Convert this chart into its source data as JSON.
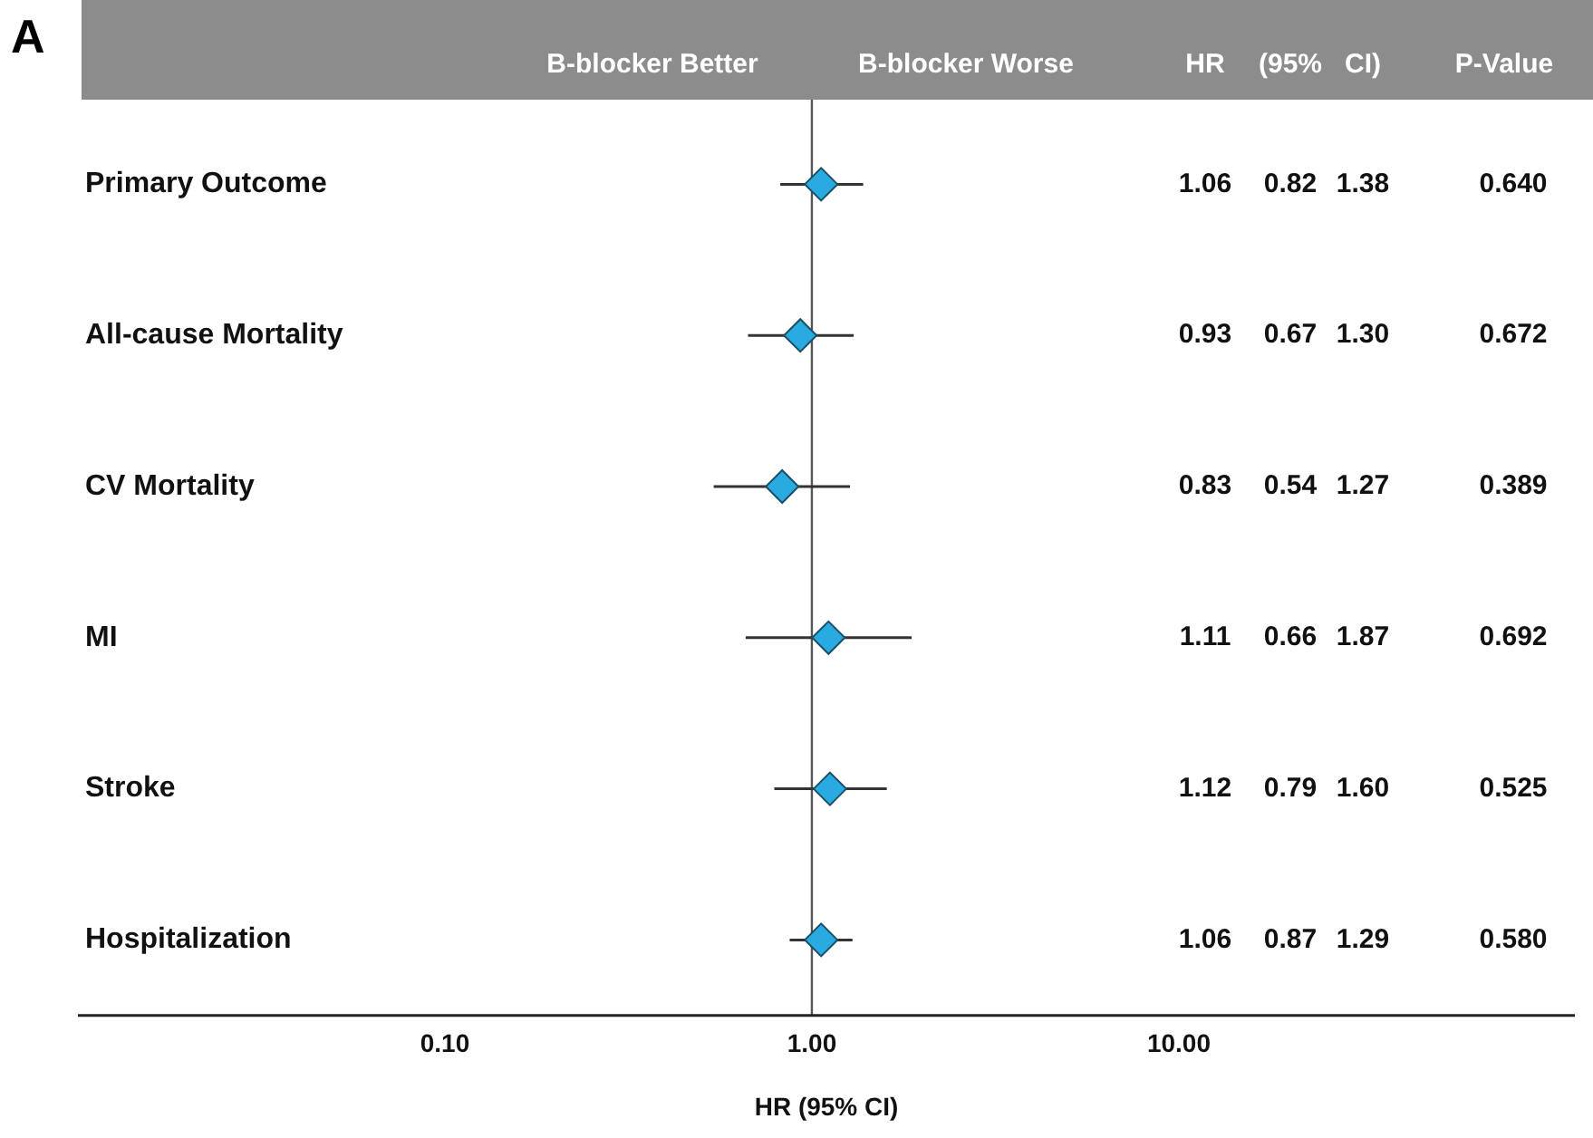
{
  "chart_data": {
    "type": "scatter",
    "orientation": "horizontal",
    "xlabel": "HR (95% CI)",
    "categories": [
      "Primary Outcome",
      "All-cause Mortality",
      "CV Mortality",
      "MI",
      "Stroke",
      "Hospitalization"
    ],
    "values": [
      1.06,
      0.93,
      0.83,
      1.11,
      1.12,
      1.06
    ],
    "errors": [
      [
        0.82,
        1.38
      ],
      [
        0.67,
        1.3
      ],
      [
        0.54,
        1.27
      ],
      [
        0.66,
        1.87
      ],
      [
        0.79,
        1.6
      ],
      [
        0.87,
        1.29
      ]
    ],
    "color": "#29abe2",
    "marker": "diamond",
    "log": "x",
    "grid": false,
    "legend": false,
    "xlim": [
      0.01,
      120
    ],
    "xticks": [
      {
        "value": 0.1,
        "label": "0.10"
      },
      {
        "value": 1,
        "label": "1.00"
      },
      {
        "value": 10,
        "label": "10.00"
      }
    ],
    "ref_lines": [
      {
        "axis": "x",
        "value": 1,
        "color": "#555555"
      }
    ],
    "annotations": [
      "A",
      "B-blocker Better",
      "B-blocker Worse",
      "HR",
      "(95%",
      "CI)",
      "P-Value",
      "1.06",
      "0.82",
      "1.38",
      "0.640",
      "0.93",
      "0.67",
      "1.30",
      "0.672",
      "0.83",
      "0.54",
      "1.27",
      "0.389",
      "1.11",
      "0.66",
      "1.87",
      "0.692",
      "1.12",
      "0.79",
      "1.60",
      "0.525",
      "1.06",
      "0.87",
      "1.29",
      "0.580"
    ]
  }
}
